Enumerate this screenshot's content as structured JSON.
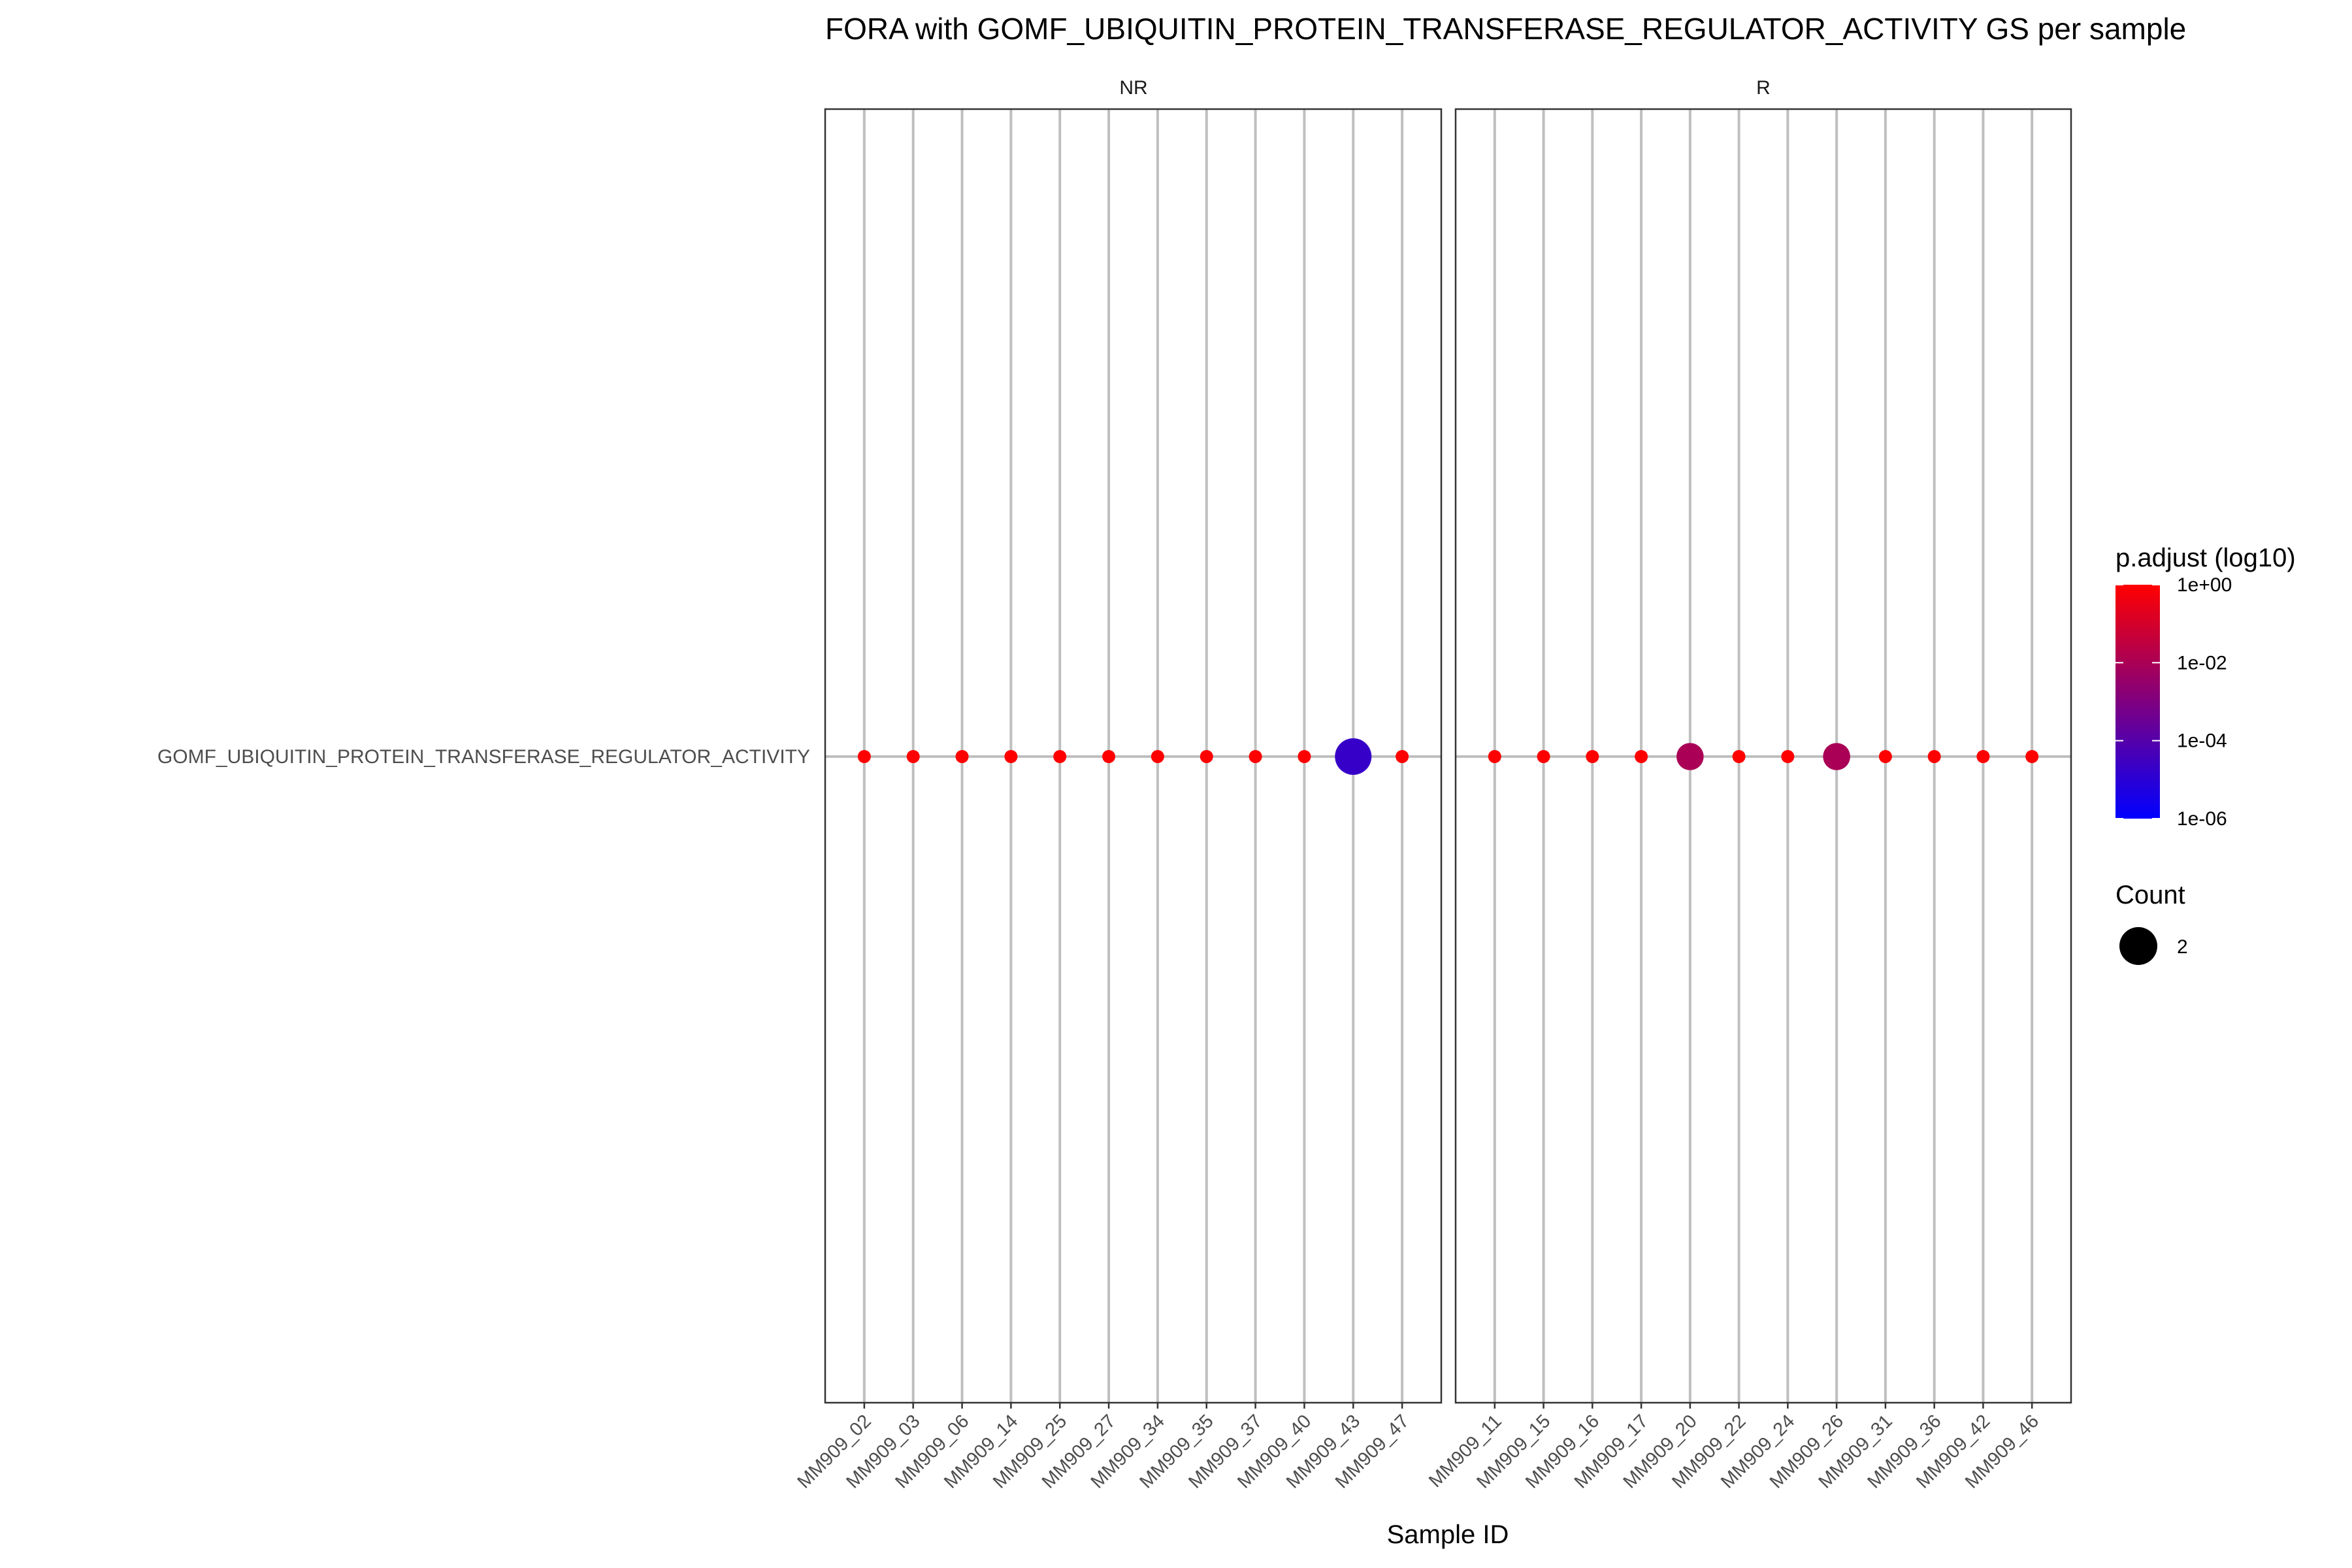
{
  "chart_data": {
    "type": "scatter",
    "title": "FORA with GOMF_UBIQUITIN_PROTEIN_TRANSFERASE_REGULATOR_ACTIVITY GS per sample",
    "xlabel": "Sample ID",
    "ylabel": "",
    "y_categories": [
      "GOMF_UBIQUITIN_PROTEIN_TRANSFERASE_REGULATOR_ACTIVITY"
    ],
    "grid": true,
    "facets": [
      {
        "name": "NR",
        "samples": [
          "MM909_02",
          "MM909_03",
          "MM909_06",
          "MM909_14",
          "MM909_25",
          "MM909_27",
          "MM909_34",
          "MM909_35",
          "MM909_37",
          "MM909_40",
          "MM909_43",
          "MM909_47"
        ],
        "p_adjust": [
          1,
          1,
          1,
          1,
          1,
          1,
          1,
          1,
          1,
          1,
          2e-05,
          1
        ],
        "count": [
          1,
          1,
          1,
          1,
          1,
          1,
          1,
          1,
          1,
          1,
          2,
          1
        ]
      },
      {
        "name": "R",
        "samples": [
          "MM909_11",
          "MM909_15",
          "MM909_16",
          "MM909_17",
          "MM909_20",
          "MM909_22",
          "MM909_24",
          "MM909_26",
          "MM909_31",
          "MM909_36",
          "MM909_42",
          "MM909_46"
        ],
        "p_adjust": [
          1,
          1,
          1,
          1,
          0.01,
          1,
          1,
          0.01,
          1,
          1,
          1,
          1
        ],
        "count": [
          1,
          1,
          1,
          1,
          1.6,
          1,
          1,
          1.6,
          1,
          1,
          1,
          1
        ]
      }
    ],
    "color_legend": {
      "title": "p.adjust (log10)",
      "ticks": [
        "1e+00",
        "1e-02",
        "1e-04",
        "1e-06"
      ],
      "tick_log10": [
        0,
        -2,
        -4,
        -6
      ],
      "range_log10": [
        -6,
        0
      ],
      "color_high": "#ff0000",
      "color_low": "#0000ff",
      "placement": "right"
    },
    "size_legend": {
      "title": "Count",
      "entries": [
        2
      ],
      "entry_label": "2",
      "placement": "right"
    }
  }
}
